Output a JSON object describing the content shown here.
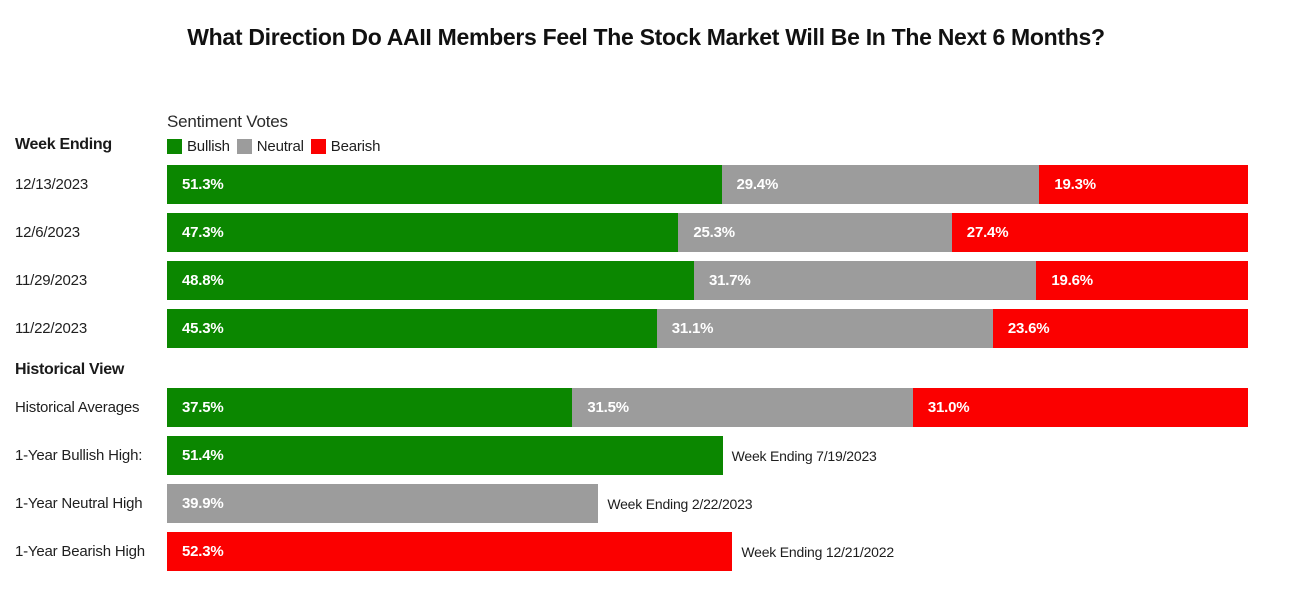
{
  "title": "What Direction Do AAII Members Feel The Stock Market Will Be In The Next 6 Months?",
  "left_column": {
    "week_ending_label": "Week Ending",
    "historical_view_label": "Historical View"
  },
  "colors": {
    "bullish": "#0b8700",
    "neutral": "#9c9c9c",
    "bearish": "#fb0000",
    "bar_value_text": "#ffffff",
    "body_text": "#1f1f1f"
  },
  "chart_data": {
    "type": "bar",
    "orientation": "horizontal",
    "stacked": true,
    "subtitle": "Sentiment Votes",
    "axis_max": 100,
    "value_format": "percent_one_decimal",
    "legend_position": "top",
    "legend": [
      {
        "name": "Bullish",
        "color": "#0b8700"
      },
      {
        "name": "Neutral",
        "color": "#9c9c9c"
      },
      {
        "name": "Bearish",
        "color": "#fb0000"
      }
    ],
    "weekly_rows": [
      {
        "label": "12/13/2023",
        "values": {
          "Bullish": 51.3,
          "Neutral": 29.4,
          "Bearish": 19.3
        }
      },
      {
        "label": "12/6/2023",
        "values": {
          "Bullish": 47.3,
          "Neutral": 25.3,
          "Bearish": 27.4
        }
      },
      {
        "label": "11/29/2023",
        "values": {
          "Bullish": 48.8,
          "Neutral": 31.7,
          "Bearish": 19.6
        }
      },
      {
        "label": "11/22/2023",
        "values": {
          "Bullish": 45.3,
          "Neutral": 31.1,
          "Bearish": 23.6
        }
      }
    ],
    "historical_rows": [
      {
        "label": "Historical Averages",
        "values": {
          "Bullish": 37.5,
          "Neutral": 31.5,
          "Bearish": 31.0
        }
      }
    ],
    "extreme_rows": [
      {
        "label": "1-Year Bullish High:",
        "series": "Bullish",
        "value": 51.4,
        "note": "Week Ending 7/19/2023"
      },
      {
        "label": "1-Year Neutral High",
        "series": "Neutral",
        "value": 39.9,
        "note": "Week Ending 2/22/2023"
      },
      {
        "label": "1-Year Bearish High",
        "series": "Bearish",
        "value": 52.3,
        "note": "Week Ending 12/21/2022"
      }
    ]
  }
}
